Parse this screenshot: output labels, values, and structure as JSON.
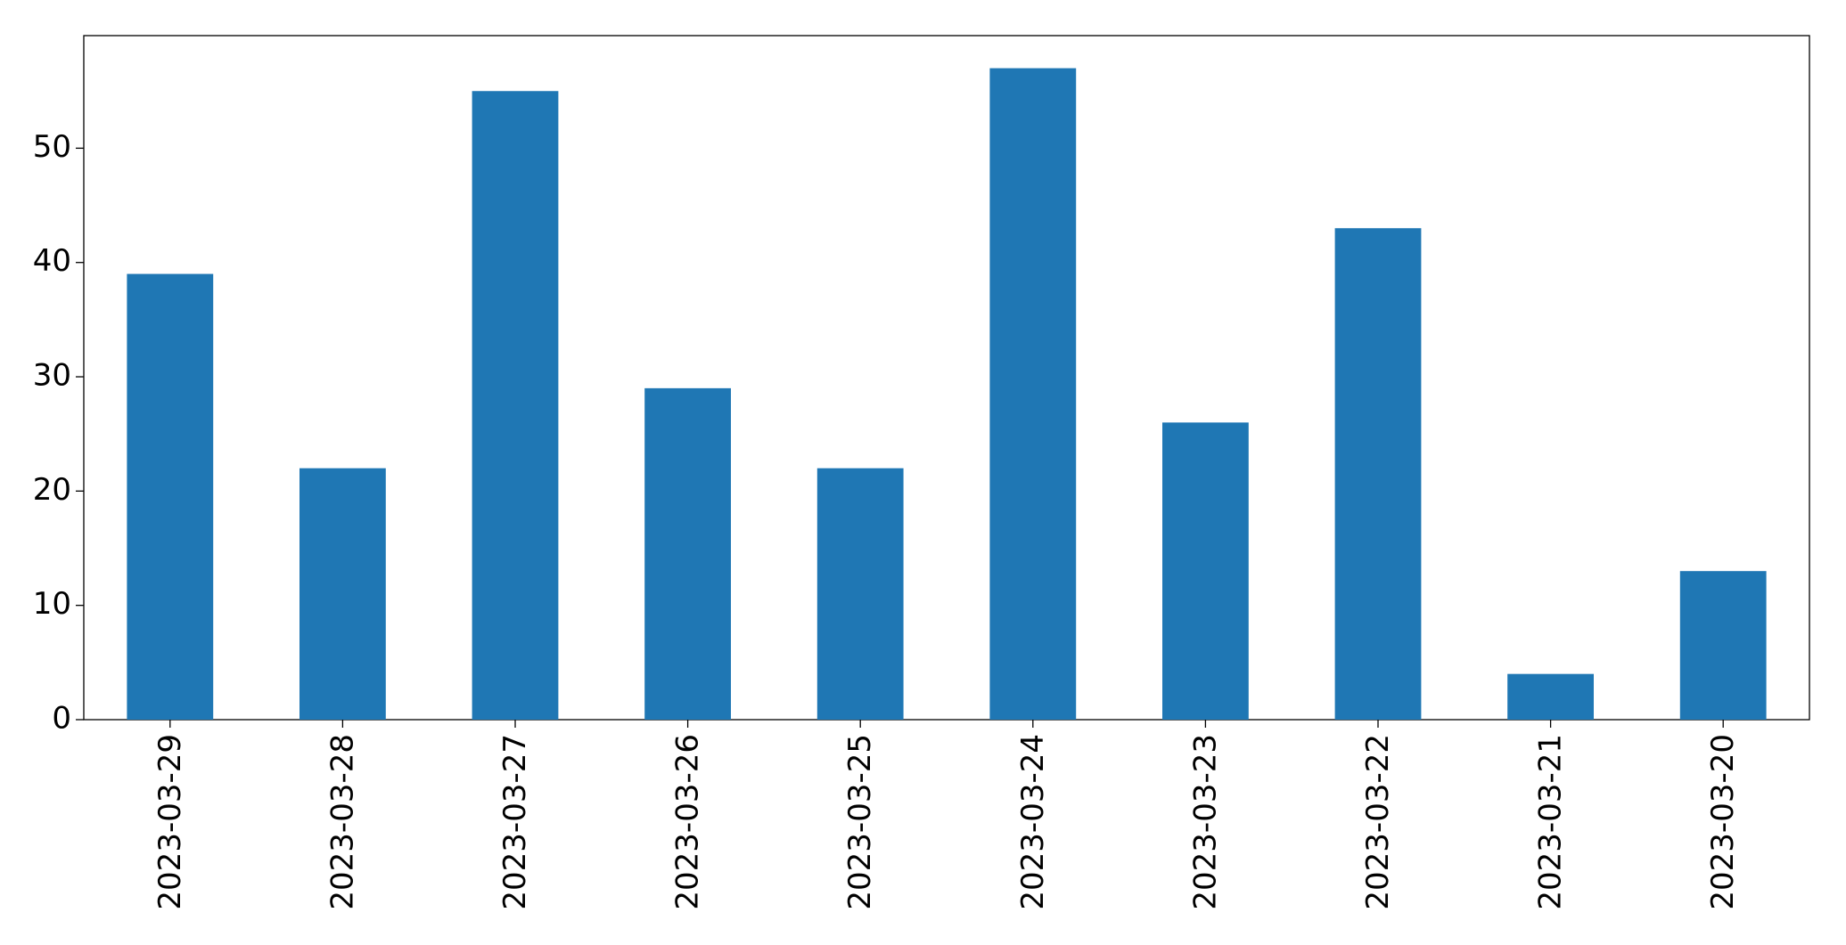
{
  "chart_data": {
    "type": "bar",
    "categories": [
      "2023-03-29",
      "2023-03-28",
      "2023-03-27",
      "2023-03-26",
      "2023-03-25",
      "2023-03-24",
      "2023-03-23",
      "2023-03-22",
      "2023-03-21",
      "2023-03-20"
    ],
    "values": [
      39,
      22,
      55,
      29,
      22,
      57,
      26,
      43,
      4,
      13
    ],
    "color": "#1f77b4",
    "ylim": [
      0,
      59.85
    ],
    "yticks": [
      0,
      10,
      20,
      30,
      40,
      50
    ],
    "grid": false
  }
}
